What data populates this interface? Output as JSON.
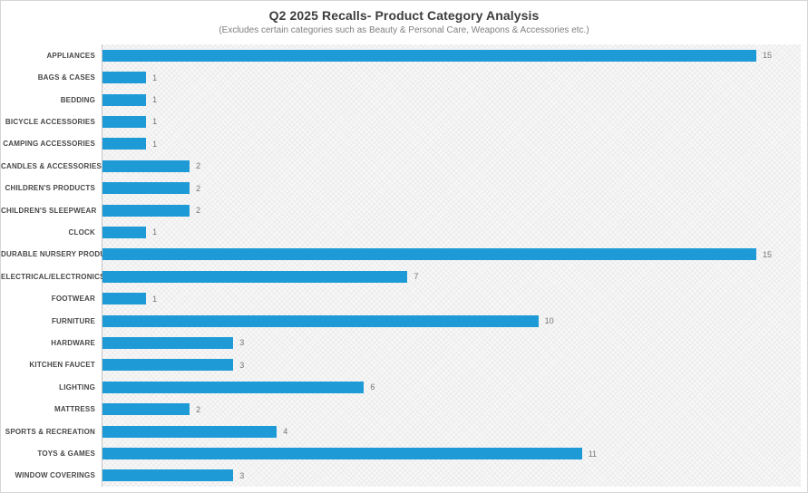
{
  "header": {
    "title": "Q2 2025 Recalls- Product Category Analysis",
    "subtitle": "(Excludes certain categories such as Beauty & Personal Care, Weapons & Accessories etc.)"
  },
  "colors": {
    "bar": "#1e9bd7",
    "title_text": "#3d3d3d",
    "subtitle_text": "#808080",
    "value_text": "#757575",
    "plot_background": "#f7f7f7"
  },
  "chart_data": {
    "type": "bar",
    "orientation": "horizontal",
    "title": "Q2 2025 Recalls- Product Category Analysis",
    "subtitle": "(Excludes certain categories such as Beauty & Personal Care, Weapons & Accessories etc.)",
    "categories": [
      "APPLIANCES",
      "BAGS & CASES",
      "BEDDING",
      "BICYCLE ACCESSORIES",
      "CAMPING ACCESSORIES",
      "CANDLES & ACCESSORIES",
      "CHILDREN'S PRODUCTS",
      "CHILDREN'S SLEEPWEAR",
      "CLOCK",
      "DURABLE NURSERY PRODUCT",
      "ELECTRICAL/ELECTRONICS",
      "FOOTWEAR",
      "FURNITURE",
      "HARDWARE",
      "KITCHEN FAUCET",
      "LIGHTING",
      "MATTRESS",
      "SPORTS & RECREATION",
      "TOYS & GAMES",
      "WINDOW COVERINGS"
    ],
    "values": [
      15,
      1,
      1,
      1,
      1,
      2,
      2,
      2,
      1,
      15,
      7,
      1,
      10,
      3,
      3,
      6,
      2,
      4,
      11,
      3
    ],
    "data_labels": true,
    "xlabel": "",
    "ylabel": "",
    "xlim": [
      0,
      16
    ],
    "grid": false,
    "legend": false,
    "bar_color": "#1e9bd7",
    "plot_background_pattern": "diagonal-crosshatch"
  }
}
